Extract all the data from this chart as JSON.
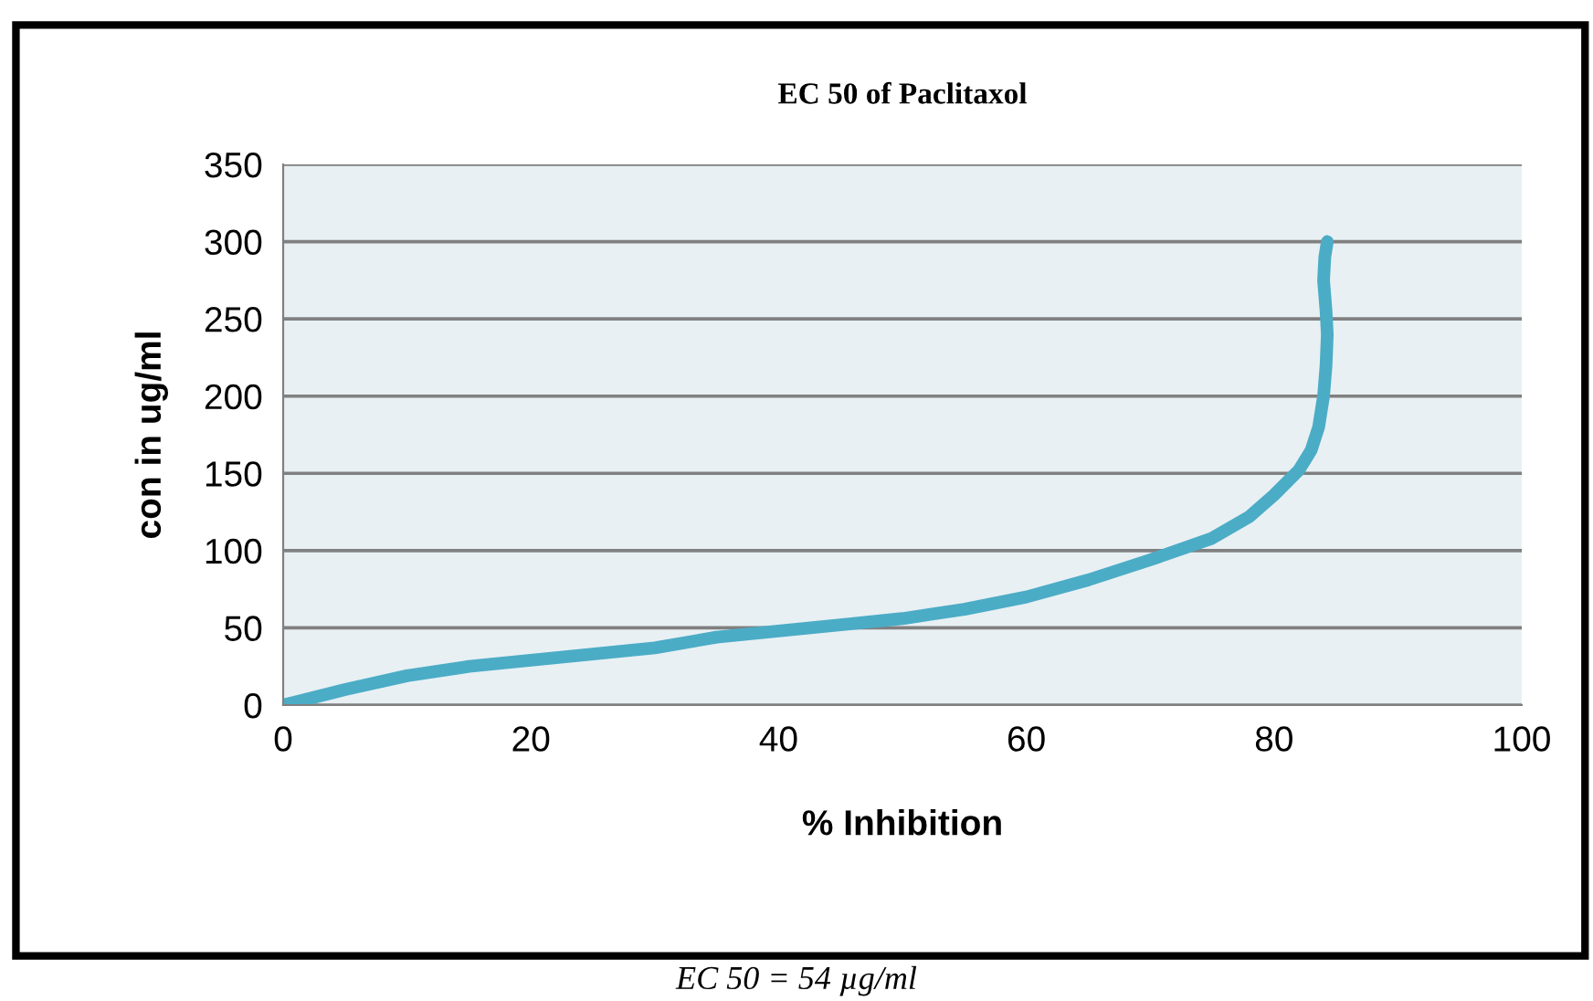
{
  "chart_data": {
    "type": "line",
    "title": "EC 50 of Paclitaxol",
    "xlabel": "% Inhibition",
    "ylabel": "con in ug/ml",
    "annotations": [
      "EC 50 = 54 µg/ml"
    ],
    "series": [
      {
        "color": "#4bacc6",
        "x": [
          0,
          5,
          10,
          15,
          20,
          25,
          30,
          35,
          40,
          45,
          50,
          55,
          60,
          65,
          70,
          75,
          78,
          80,
          82,
          83,
          83.6,
          84,
          84.2,
          84.3,
          84.2,
          84,
          84.1,
          84.3
        ],
        "values": [
          0,
          10,
          19,
          25,
          29,
          33,
          37,
          44,
          48,
          52,
          56,
          62,
          70,
          81,
          94,
          108,
          122,
          136,
          152,
          165,
          180,
          200,
          220,
          240,
          255,
          275,
          290,
          300
        ]
      }
    ],
    "xlim": [
      0,
      100
    ],
    "xticks": [
      0,
      20,
      40,
      60,
      80,
      100
    ],
    "ylim": [
      0,
      350
    ],
    "yticks": [
      0,
      50,
      100,
      150,
      200,
      250,
      300,
      350
    ],
    "grid": "y",
    "legend": false,
    "marker": "none",
    "line_style": "solid"
  }
}
